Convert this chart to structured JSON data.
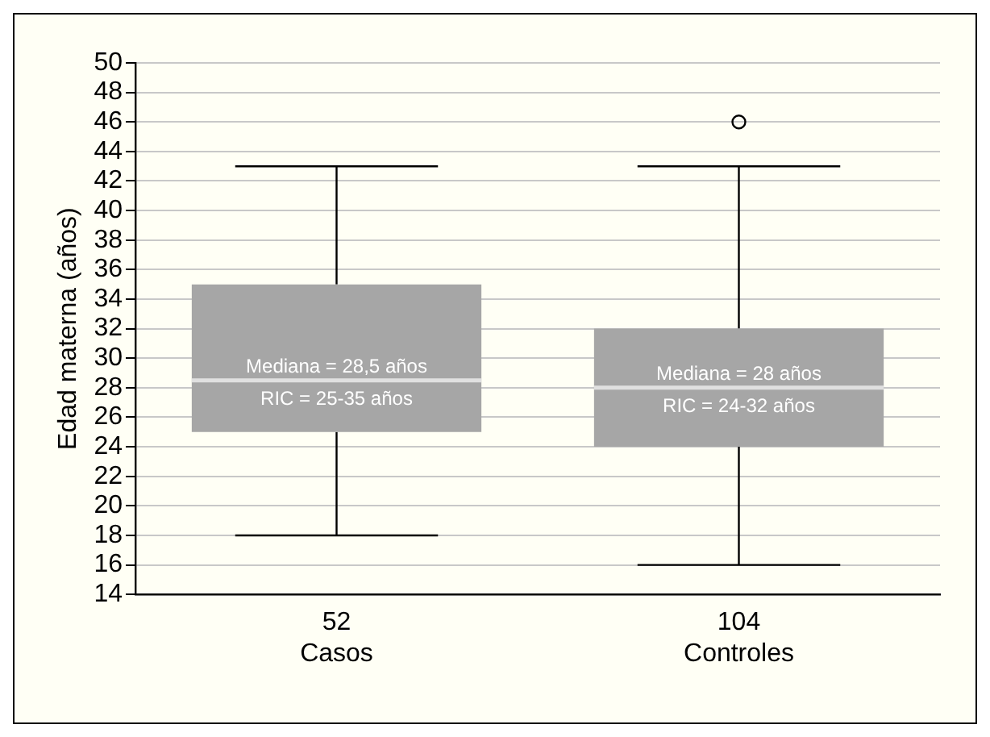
{
  "chart_data": {
    "type": "box",
    "ylabel": "Edad materna (años)",
    "categories": [
      "52\nCasos",
      "104\nControles"
    ],
    "color": "#a6a6a6",
    "boxes": [
      {
        "low": 18,
        "q1": 25,
        "median": 28.5,
        "q3": 35,
        "high": 43
      },
      {
        "low": 16,
        "q1": 24,
        "median": 28,
        "q3": 32,
        "high": 43,
        "outliers": [
          46
        ]
      }
    ],
    "annotations": [
      "Mediana = 28,5 años\nRIC = 25-35 años",
      "Mediana = 28 años\nRIC = 24-32 años"
    ],
    "ylim": [
      14,
      50
    ],
    "yticks": [
      14,
      16,
      18,
      20,
      22,
      24,
      26,
      28,
      30,
      32,
      34,
      36,
      38,
      40,
      42,
      44,
      46,
      48,
      50
    ],
    "grid": "y",
    "legend": false
  }
}
